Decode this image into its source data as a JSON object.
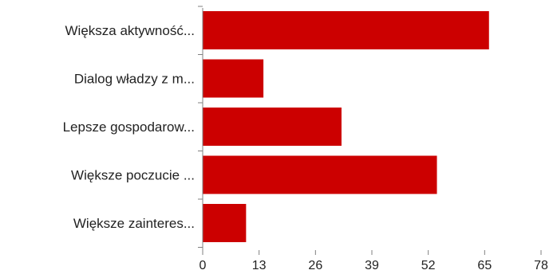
{
  "chart_data": {
    "type": "bar",
    "orientation": "horizontal",
    "title": "",
    "xlabel": "",
    "ylabel": "",
    "categories": [
      "Większa aktywność...",
      "Dialog władzy z m...",
      "Lepsze gospodarow...",
      "Większe poczucie ...",
      "Większe zainteres..."
    ],
    "values": [
      66,
      14,
      32,
      54,
      10
    ],
    "xlim": [
      0,
      78
    ],
    "ticks": [
      "0",
      "13",
      "26",
      "39",
      "52",
      "65",
      "78"
    ],
    "grid": false,
    "legend": "none",
    "bar_color": "#cc0000",
    "axis_color": "#808080"
  }
}
